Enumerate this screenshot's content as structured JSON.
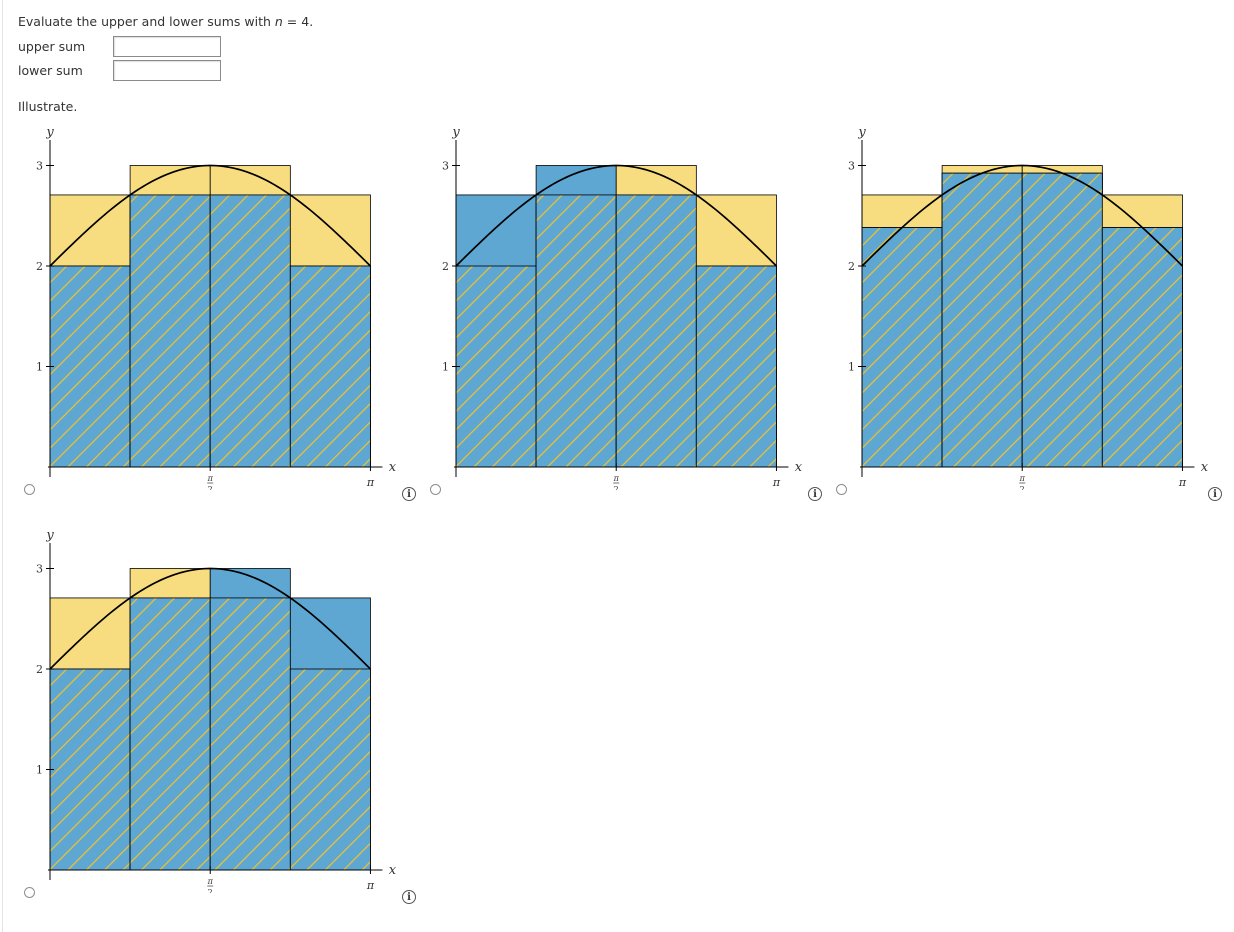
{
  "question": {
    "prompt_text": "Evaluate the upper and lower sums with ",
    "prompt_var": "n",
    "prompt_tail": " = 4.",
    "upper_label": "upper sum",
    "upper_value": "",
    "lower_label": "lower sum",
    "lower_value": "",
    "illustrate": "Illustrate."
  },
  "axis_text": {
    "y": "y",
    "x": "x",
    "tick3": "3",
    "tick2": "2",
    "tick1": "1",
    "pi_half_top": "π",
    "pi_half_bottom": "2",
    "pi": "π"
  },
  "colors": {
    "blue": "#5ea7d2",
    "yellow": "#f8dd80",
    "hatch": "#f2c12c",
    "curve": "#000000"
  },
  "choices": [
    {
      "id": "A",
      "selected": false,
      "info_icon": "info-icon",
      "chart_data": {
        "type": "area",
        "curve": "y = 2 + sin(x)",
        "x_range": [
          0,
          3.14159
        ],
        "y_range": [
          0,
          3
        ],
        "rect_edges": [
          0,
          0.7854,
          1.5708,
          2.3562,
          3.14159
        ],
        "lower_heights": [
          2,
          2.7071,
          2.7071,
          2
        ],
        "upper_heights": [
          2.7071,
          3,
          3,
          2.7071
        ],
        "hatched_heights": [
          2,
          2.7071,
          2.7071,
          2
        ],
        "blue_heights": [
          2,
          2.7071,
          2.7071,
          2
        ],
        "yellow_heights": [
          2.7071,
          3,
          3,
          2.7071
        ]
      }
    },
    {
      "id": "B",
      "selected": false,
      "info_icon": "info-icon",
      "chart_data": {
        "type": "area",
        "curve": "y = 2 + sin(x)",
        "x_range": [
          0,
          3.14159
        ],
        "y_range": [
          0,
          3
        ],
        "rect_edges": [
          0,
          0.7854,
          1.5708,
          2.3562,
          3.14159
        ],
        "hatched_heights": [
          2,
          2.7071,
          2.7071,
          2
        ],
        "blue_heights": [
          2.7071,
          3,
          2.7071,
          2
        ],
        "yellow_heights": [
          0,
          0,
          3,
          2.7071
        ]
      }
    },
    {
      "id": "C",
      "selected": false,
      "info_icon": "info-icon",
      "chart_data": {
        "type": "area",
        "curve": "y = 2 + sin(x)",
        "x_range": [
          0,
          3.14159
        ],
        "y_range": [
          0,
          3
        ],
        "rect_edges": [
          0,
          0.7854,
          1.5708,
          2.3562,
          3.14159
        ],
        "hatched_heights": [
          2.3827,
          2.9239,
          2.9239,
          2.3827
        ],
        "blue_heights": [
          2.3827,
          2.9239,
          2.9239,
          2.3827
        ],
        "yellow_heights": [
          2.7071,
          3,
          3,
          2.7071
        ]
      }
    },
    {
      "id": "D",
      "selected": false,
      "info_icon": "info-icon",
      "chart_data": {
        "type": "area",
        "curve": "y = 2 + sin(x)",
        "x_range": [
          0,
          3.14159
        ],
        "y_range": [
          0,
          3
        ],
        "rect_edges": [
          0,
          0.7854,
          1.5708,
          2.3562,
          3.14159
        ],
        "hatched_heights": [
          2,
          2.7071,
          2.7071,
          2
        ],
        "blue_heights": [
          2,
          2.7071,
          3,
          2.7071
        ],
        "yellow_heights": [
          2.7071,
          3,
          0,
          0
        ]
      }
    }
  ]
}
